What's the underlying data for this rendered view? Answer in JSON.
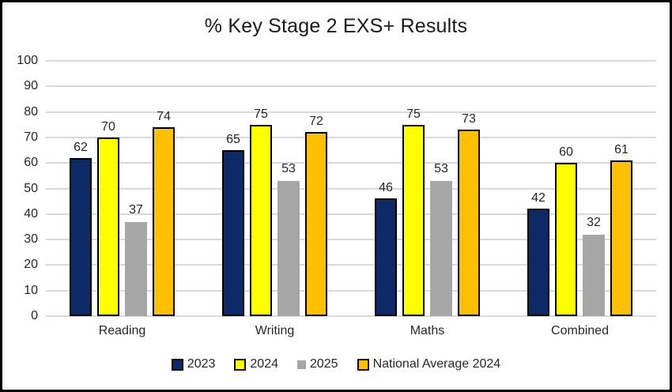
{
  "title": "% Key Stage 2 EXS+ Results",
  "colors": {
    "grid": "#d9d9d9",
    "text": "#262626",
    "frame": "#000000",
    "background": "#ffffff"
  },
  "chart_data": {
    "type": "bar",
    "title": "% Key Stage 2 EXS+ Results",
    "xlabel": "",
    "ylabel": "",
    "ylim": [
      0,
      100
    ],
    "yticks": [
      0,
      10,
      20,
      30,
      40,
      50,
      60,
      70,
      80,
      90,
      100
    ],
    "grid": true,
    "data_labels": true,
    "legend_position": "bottom",
    "categories": [
      "Reading",
      "Writing",
      "Maths",
      "Combined"
    ],
    "series": [
      {
        "name": "2023",
        "color": "#0b2a66",
        "border": "#000000",
        "values": [
          62,
          65,
          46,
          42
        ]
      },
      {
        "name": "2024",
        "color": "#ffff00",
        "border": "#000000",
        "values": [
          70,
          75,
          75,
          60
        ]
      },
      {
        "name": "2025",
        "color": "#a6a6a6",
        "border": null,
        "values": [
          37,
          53,
          53,
          32
        ]
      },
      {
        "name": "National Average 2024",
        "color": "#ffc000",
        "border": "#000000",
        "values": [
          74,
          72,
          73,
          61
        ]
      }
    ]
  }
}
